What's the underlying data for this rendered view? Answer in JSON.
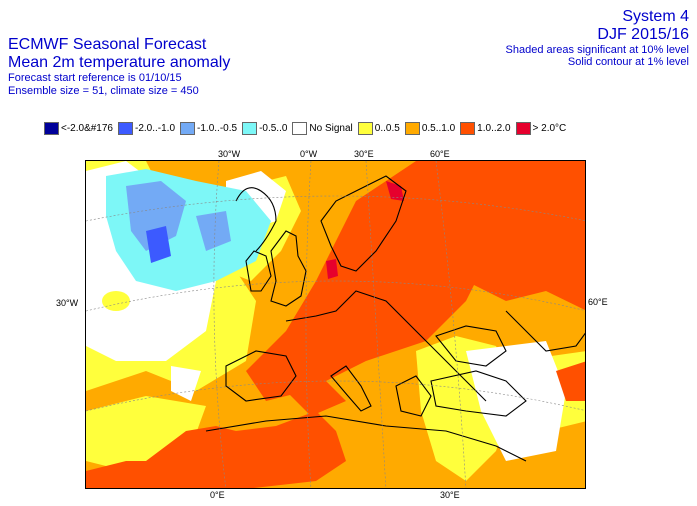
{
  "header": {
    "title_line1": "ECMWF Seasonal Forecast",
    "title_line2": "Mean 2m temperature anomaly",
    "title_line3": "Forecast start reference is 01/10/15",
    "title_line4": "Ensemble size = 51, climate size = 450",
    "system": "System 4",
    "season": "DJF 2015/16",
    "significance_10": "Shaded areas significant at 10% level",
    "significance_1": "Solid contour at 1% level"
  },
  "legend": [
    {
      "label": "<-2.0&#176",
      "color": "#00009a"
    },
    {
      "label": "-2.0..-1.0",
      "color": "#3c5aff"
    },
    {
      "label": "-1.0..-0.5",
      "color": "#73aaf5"
    },
    {
      "label": "-0.5..0",
      "color": "#7df7f7"
    },
    {
      "label": "No Signal",
      "color": "#ffffff"
    },
    {
      "label": "0..0.5",
      "color": "#ffff3c"
    },
    {
      "label": "0.5..1.0",
      "color": "#ffaa00"
    },
    {
      "label": "1.0..2.0",
      "color": "#ff5000"
    },
    {
      "label": "> 2.0°C",
      "color": "#e6002d"
    }
  ],
  "map": {
    "labels_top": [
      "30°W",
      "0°W",
      "30°E",
      "60°E"
    ],
    "labels_left": [
      "30°W"
    ],
    "labels_right": [
      "60°E"
    ],
    "labels_bottom": [
      "0°E",
      "30°E"
    ]
  }
}
